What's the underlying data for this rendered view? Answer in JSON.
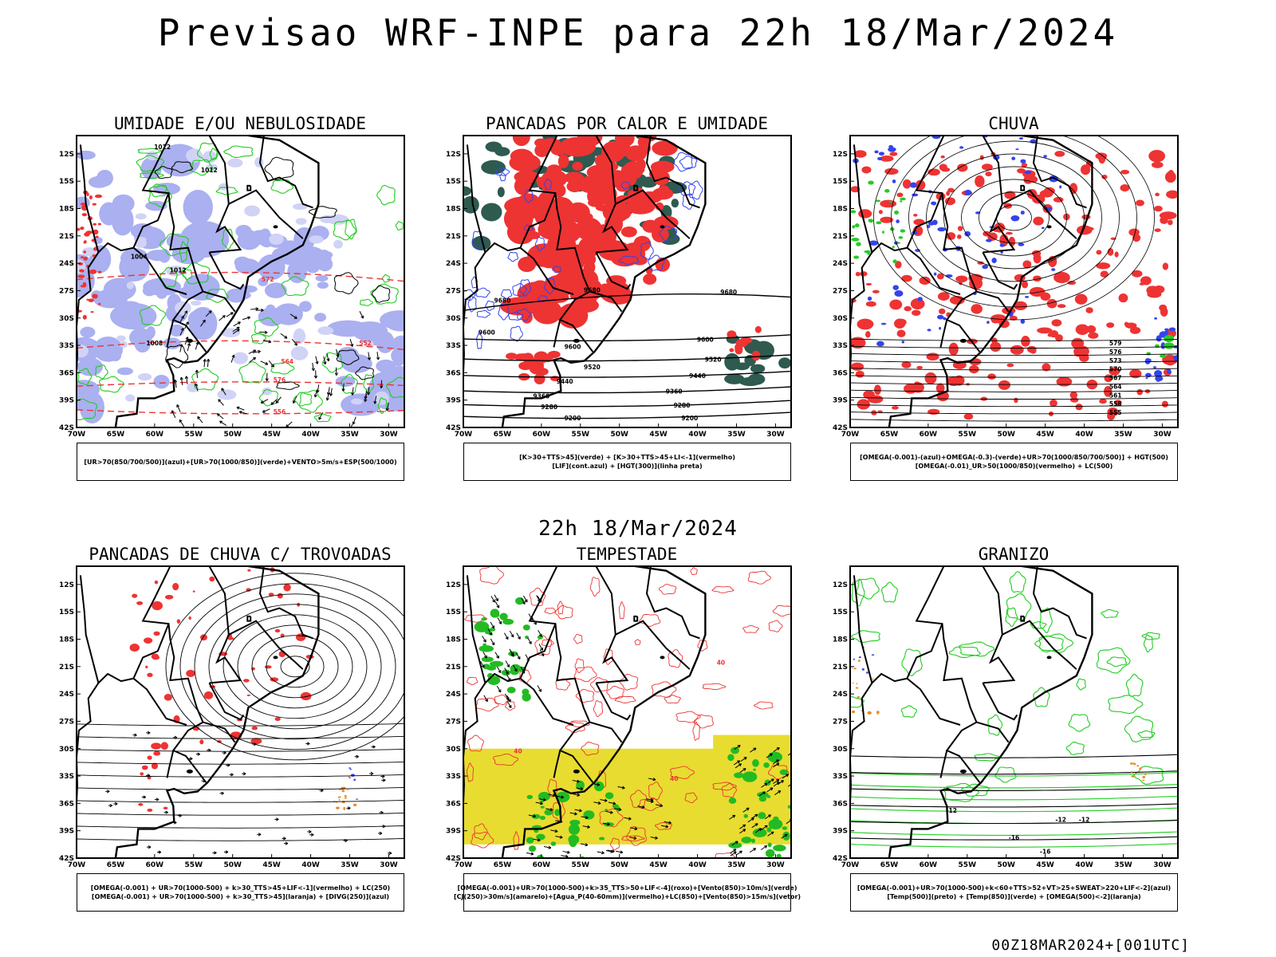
{
  "title": "Previsao WRF-INPE  para 22h 18/Mar/2024",
  "subtitle": "22h 18/Mar/2024",
  "footer": "00Z18MAR2024+[001UTC]",
  "axes": {
    "lat_labels": [
      "12S",
      "15S",
      "18S",
      "21S",
      "24S",
      "27S",
      "30S",
      "33S",
      "36S",
      "39S",
      "42S"
    ],
    "lon_labels": [
      "70W",
      "65W",
      "60W",
      "55W",
      "50W",
      "45W",
      "40W",
      "35W",
      "30W"
    ]
  },
  "colors": {
    "blue": "#3344ee",
    "green": "#22cc22",
    "red": "#ee3333",
    "lavender": "#aab0f0",
    "darkgreen": "#2e5a50",
    "yellow": "#e8dc30",
    "orange": "#ee8822",
    "purple": "#aa33cc",
    "vector_green": "#22bb22"
  },
  "panels": [
    {
      "id": "umidade",
      "title": "UMIDADE E/OU NEBULOSIDADE",
      "legend": [
        "[UR>70(850/700/500)](azul)+[UR>70(1000/850)](verde)+VENTO>5m/s+ESP(500/1000)"
      ],
      "contour_labels": [
        "1012",
        "1008",
        "1004",
        "1012",
        "572",
        "576",
        "564",
        "556",
        "552"
      ]
    },
    {
      "id": "pancadas-calor",
      "title": "PANCADAS POR CALOR E UMIDADE",
      "legend": [
        "[K>30+TTS>45](verde) + [K>30+TTS>45+LI<-1](vermelho)",
        "[LIF](cont.azul) + [HGT(300)](linha preta)"
      ],
      "contour_labels": [
        "9680",
        "9600",
        "9520",
        "9440",
        "9360",
        "9280",
        "9200"
      ]
    },
    {
      "id": "chuva",
      "title": "CHUVA",
      "legend": [
        "[OMEGA(-0.001)-(azul)+OMEGA(-0.3)-(verde)+UR>70(1000/850/700/500)] + HGT(500)",
        "[OMEGA(-0.01)_UR>50(1000/850)(vermelho) + LC(500)"
      ],
      "contour_labels": [
        "579",
        "576",
        "573",
        "570",
        "567",
        "564",
        "561",
        "558",
        "555"
      ]
    },
    {
      "id": "trovoadas",
      "title": "PANCADAS DE CHUVA C/ TROVOADAS",
      "legend": [
        "[OMEGA(-0.001) + UR>70(1000-500) + k>30_TTS>45+LIF<-1](vermelho) + LC(250)",
        "[OMEGA(-0.001) + UR>70(1000-500) + k>30_TTS>45](laranja) + [DIVG(250)](azul)"
      ],
      "contour_labels": []
    },
    {
      "id": "tempestade",
      "title": "TEMPESTADE",
      "legend": [
        "[OMEGA(-0.001)+UR>70(1000-500)+k>35_TTS>50+LIF<-4](roxo)+[Vento(850)>10m/s](verde)",
        "[CJ(250)>30m/s](amarelo)+[Agua_P(40-60mm)](vermelho)+LC(850)+[Vento(850)>15m/s](vetor)"
      ],
      "contour_labels": [
        "40",
        "40",
        "40"
      ]
    },
    {
      "id": "granizo",
      "title": "GRANIZO",
      "legend": [
        "[OMEGA(-0.001)+UR>70(1000-500)+k<60+TTS>52+VT>25+SWEAT>220+LIF<-2](azul)",
        "[Temp(500)](preto) + [Temp(850)](verde) + [OMEGA(500)<-2](laranja)"
      ],
      "contour_labels": [
        "-12",
        "-12",
        "-12",
        "-16",
        "-16"
      ]
    }
  ]
}
